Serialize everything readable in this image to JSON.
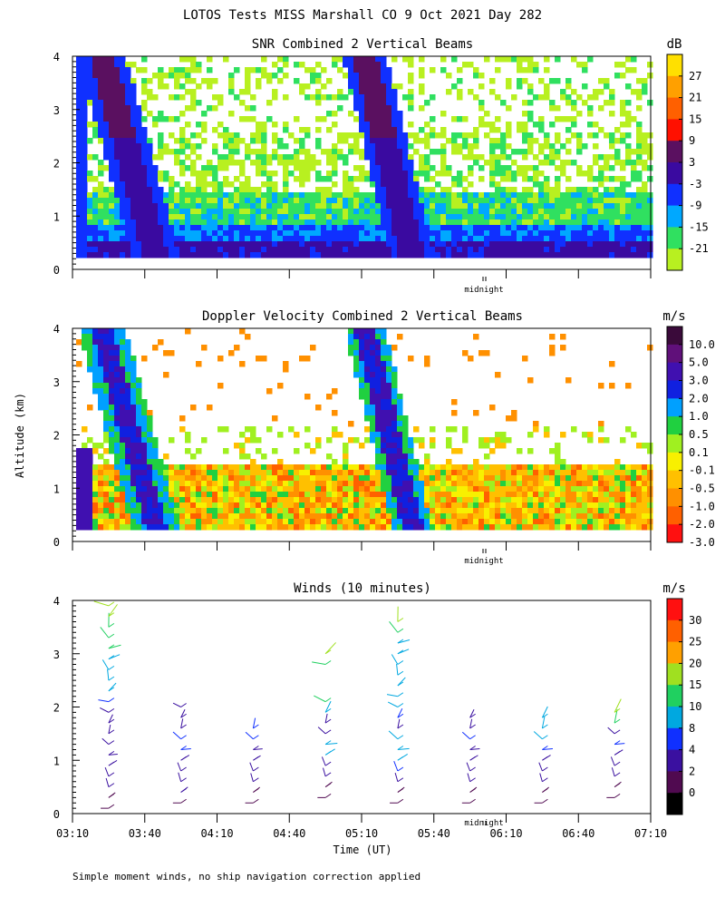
{
  "page_title": "LOTOS Tests MISS Marshall CO   9 Oct 2021 Day 282",
  "y_axis_label": "Altitude (km)",
  "x_axis_label": "Time (UT)",
  "footnote": "Simple moment winds, no ship navigation correction applied",
  "midnight_label": "midnight",
  "chart_data": [
    {
      "type": "heatmap",
      "title": "SNR Combined 2 Vertical Beams",
      "ylim": [
        0,
        4
      ],
      "y_ticks": [
        "0",
        "1",
        "2",
        "3",
        "4"
      ],
      "xlim": [
        "03:10",
        "07:10"
      ],
      "colorbar": {
        "unit": "dB",
        "labels": [
          "27",
          "21",
          "15",
          "9",
          "3",
          "-3",
          "-9",
          "-15",
          "-21"
        ],
        "colors": [
          "#ffe000",
          "#ffa000",
          "#ff6000",
          "#ff1000",
          "#5a1060",
          "#3a0aa0",
          "#1030ff",
          "#00a8ff",
          "#30e060",
          "#b8f020"
        ]
      }
    },
    {
      "type": "heatmap",
      "title": "Doppler Velocity Combined 2 Vertical Beams",
      "ylim": [
        0,
        4
      ],
      "y_ticks": [
        "0",
        "1",
        "2",
        "3",
        "4"
      ],
      "xlim": [
        "03:10",
        "07:10"
      ],
      "colorbar": {
        "unit": "m/s",
        "labels": [
          "10.0",
          "5.0",
          "3.0",
          "2.0",
          "1.0",
          "0.5",
          "0.1",
          "-0.1",
          "-0.5",
          "-1.0",
          "-2.0",
          "-3.0"
        ],
        "colors": [
          "#3a0a3a",
          "#60107a",
          "#4010b0",
          "#1020e0",
          "#00a0ff",
          "#20d040",
          "#a0f020",
          "#f8f000",
          "#ffc000",
          "#ff9000",
          "#ff6000",
          "#ff1010"
        ]
      }
    },
    {
      "type": "scatter",
      "title": "Winds (10 minutes)",
      "ylim": [
        0,
        4
      ],
      "y_ticks": [
        "0",
        "1",
        "2",
        "3",
        "4"
      ],
      "x_ticks": [
        "03:10",
        "03:40",
        "04:10",
        "04:40",
        "05:10",
        "05:40",
        "06:10",
        "06:40",
        "07:10"
      ],
      "colorbar": {
        "unit": "m/s",
        "labels": [
          "30",
          "25",
          "20",
          "15",
          "10",
          "8",
          "4",
          "2",
          "0"
        ],
        "colors": [
          "#ff1010",
          "#ff6000",
          "#ffa000",
          "#a0e020",
          "#20d060",
          "#00a8e0",
          "#1030ff",
          "#3a10a0",
          "#500a50",
          "#000000"
        ]
      },
      "profiles": [
        {
          "time": "03:25",
          "altitude_km": [
            0.1,
            0.3,
            0.5,
            0.7,
            0.9,
            1.1,
            1.3,
            1.5,
            1.7,
            1.9,
            2.1,
            2.3,
            2.5,
            2.7,
            2.9,
            3.1,
            3.3,
            3.5,
            3.7,
            3.9
          ],
          "speed": [
            2,
            3,
            5,
            6,
            7,
            5,
            4,
            5,
            6,
            7,
            9,
            10,
            11,
            12,
            13,
            15,
            17,
            19,
            21,
            22
          ]
        },
        {
          "time": "03:55",
          "altitude_km": [
            0.2,
            0.4,
            0.6,
            0.8,
            1.0,
            1.2,
            1.4,
            1.6,
            1.8,
            2.0
          ],
          "speed": [
            2,
            4,
            6,
            5,
            7,
            8,
            9,
            7,
            5,
            4
          ]
        },
        {
          "time": "04:25",
          "altitude_km": [
            0.2,
            0.4,
            0.6,
            0.8,
            1.0,
            1.2,
            1.4,
            1.6
          ],
          "speed": [
            2,
            3,
            4,
            5,
            4,
            6,
            8,
            9
          ]
        },
        {
          "time": "04:55",
          "altitude_km": [
            0.3,
            0.5,
            0.7,
            0.9,
            1.1,
            1.3,
            1.5,
            1.7,
            1.9,
            2.1,
            2.8,
            3.0
          ],
          "speed": [
            2,
            3,
            4,
            6,
            11,
            13,
            7,
            6,
            14,
            16,
            18,
            22
          ]
        },
        {
          "time": "05:25",
          "altitude_km": [
            0.2,
            0.4,
            0.6,
            0.8,
            1.0,
            1.2,
            1.4,
            1.6,
            1.8,
            2.0,
            2.2,
            2.4,
            2.6,
            2.8,
            3.0,
            3.2,
            3.4,
            3.6
          ],
          "speed": [
            2,
            3,
            5,
            9,
            12,
            12,
            13,
            6,
            8,
            10,
            10,
            11,
            11,
            12,
            13,
            14,
            18,
            22
          ]
        },
        {
          "time": "05:55",
          "altitude_km": [
            0.2,
            0.4,
            0.6,
            0.8,
            1.0,
            1.2,
            1.4,
            1.6,
            1.8
          ],
          "speed": [
            2,
            3,
            4,
            5,
            6,
            7,
            8,
            6,
            5
          ]
        },
        {
          "time": "06:25",
          "altitude_km": [
            0.2,
            0.4,
            0.6,
            0.8,
            1.0,
            1.2,
            1.4,
            1.6,
            1.8
          ],
          "speed": [
            2,
            3,
            4,
            5,
            7,
            9,
            11,
            13,
            14
          ]
        },
        {
          "time": "06:55",
          "altitude_km": [
            0.3,
            0.5,
            0.7,
            0.9,
            1.1,
            1.3,
            1.5,
            1.7,
            1.9
          ],
          "speed": [
            2,
            3,
            5,
            6,
            7,
            8,
            5,
            18,
            21
          ]
        }
      ]
    }
  ]
}
